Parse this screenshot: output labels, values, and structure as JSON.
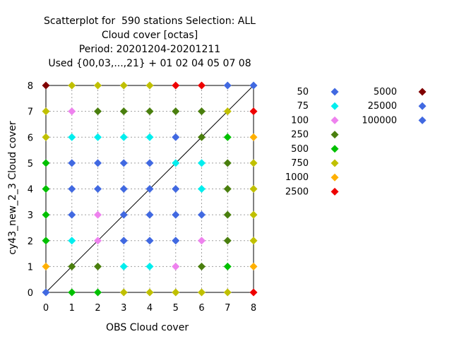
{
  "titles": [
    "Scatterplot for  590 stations Selection: ALL",
    "Cloud cover [octas]",
    "Period: 20201204-20201211",
    "Used {00,03,...,21} + 01 02 04 05 07 08"
  ],
  "chart_data": {
    "type": "scatter",
    "xlabel": "OBS Cloud cover",
    "ylabel": "cy43_new_2_3 Cloud cover",
    "xlim": [
      0,
      8
    ],
    "ylim": [
      0,
      8
    ],
    "xticks": [
      "0",
      "1",
      "2",
      "3",
      "4",
      "5",
      "6",
      "7",
      "8"
    ],
    "yticks": [
      "0",
      "1",
      "2",
      "3",
      "4",
      "5",
      "6",
      "7",
      "8"
    ],
    "grid": true,
    "diagonal_line": true,
    "legend": [
      {
        "label": "50",
        "color": "#4169e1"
      },
      {
        "label": "75",
        "color": "#00eeee"
      },
      {
        "label": "100",
        "color": "#ee82ee"
      },
      {
        "label": "250",
        "color": "#4a7f0e"
      },
      {
        "label": "500",
        "color": "#00c000"
      },
      {
        "label": "750",
        "color": "#c0c000"
      },
      {
        "label": "1000",
        "color": "#ffb000"
      },
      {
        "label": "2500",
        "color": "#ee0000"
      },
      {
        "label": "5000",
        "color": "#800000"
      },
      {
        "label": "25000",
        "color": "#4169e1"
      },
      {
        "label": "100000",
        "color": "#4169e1"
      }
    ],
    "points_by_row": [
      [
        "50",
        "500",
        "500",
        "750",
        "750",
        "750",
        "750",
        "750",
        "2500"
      ],
      [
        "1000",
        "250",
        "250",
        "75",
        "75",
        "100",
        "250",
        "500",
        "1000"
      ],
      [
        "500",
        "75",
        "100",
        "50",
        "50",
        "50",
        "100",
        "250",
        "750"
      ],
      [
        "500",
        "50",
        "100",
        "50",
        "50",
        "50",
        "50",
        "250",
        "750"
      ],
      [
        "500",
        "50",
        "50",
        "50",
        "50",
        "50",
        "75",
        "250",
        "750"
      ],
      [
        "500",
        "50",
        "50",
        "50",
        "50",
        "75",
        "75",
        "250",
        "750"
      ],
      [
        "750",
        "75",
        "75",
        "75",
        "75",
        "50",
        "250",
        "500",
        "1000"
      ],
      [
        "750",
        "100",
        "250",
        "250",
        "250",
        "250",
        "250",
        "750",
        "2500"
      ],
      [
        "5000",
        "750",
        "750",
        "750",
        "750",
        "2500",
        "2500",
        "50",
        "50"
      ]
    ]
  }
}
